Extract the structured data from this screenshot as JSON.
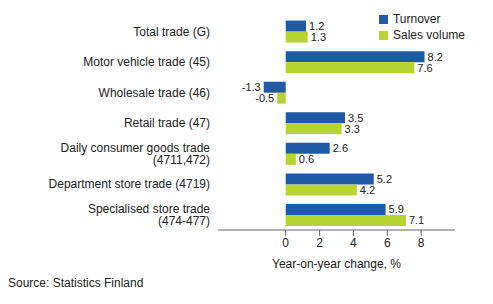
{
  "chart_data": {
    "type": "bar",
    "orientation": "horizontal",
    "categories": [
      "Total trade (G)",
      "Motor vehicle trade (45)",
      "Wholesale trade (46)",
      "Retail trade (47)",
      "Daily consumer goods trade (4711,472)",
      "Department store trade (4719)",
      "Specialised store trade (474-477)"
    ],
    "series": [
      {
        "name": "Turnover",
        "color": "#1f5aa6",
        "values": [
          1.2,
          8.2,
          -1.3,
          3.5,
          2.6,
          5.2,
          5.9
        ]
      },
      {
        "name": "Sales volume",
        "color": "#b8d432",
        "values": [
          1.3,
          7.6,
          -0.5,
          3.3,
          0.6,
          4.2,
          7.1
        ]
      }
    ],
    "x_label": "Year-on-year change, %",
    "xlim": [
      -4,
      10
    ],
    "xticks": [
      0,
      2,
      4,
      6,
      8
    ],
    "grid": false,
    "legend": "top-right",
    "data_labels": true,
    "source": "Source: Statistics Finland"
  }
}
